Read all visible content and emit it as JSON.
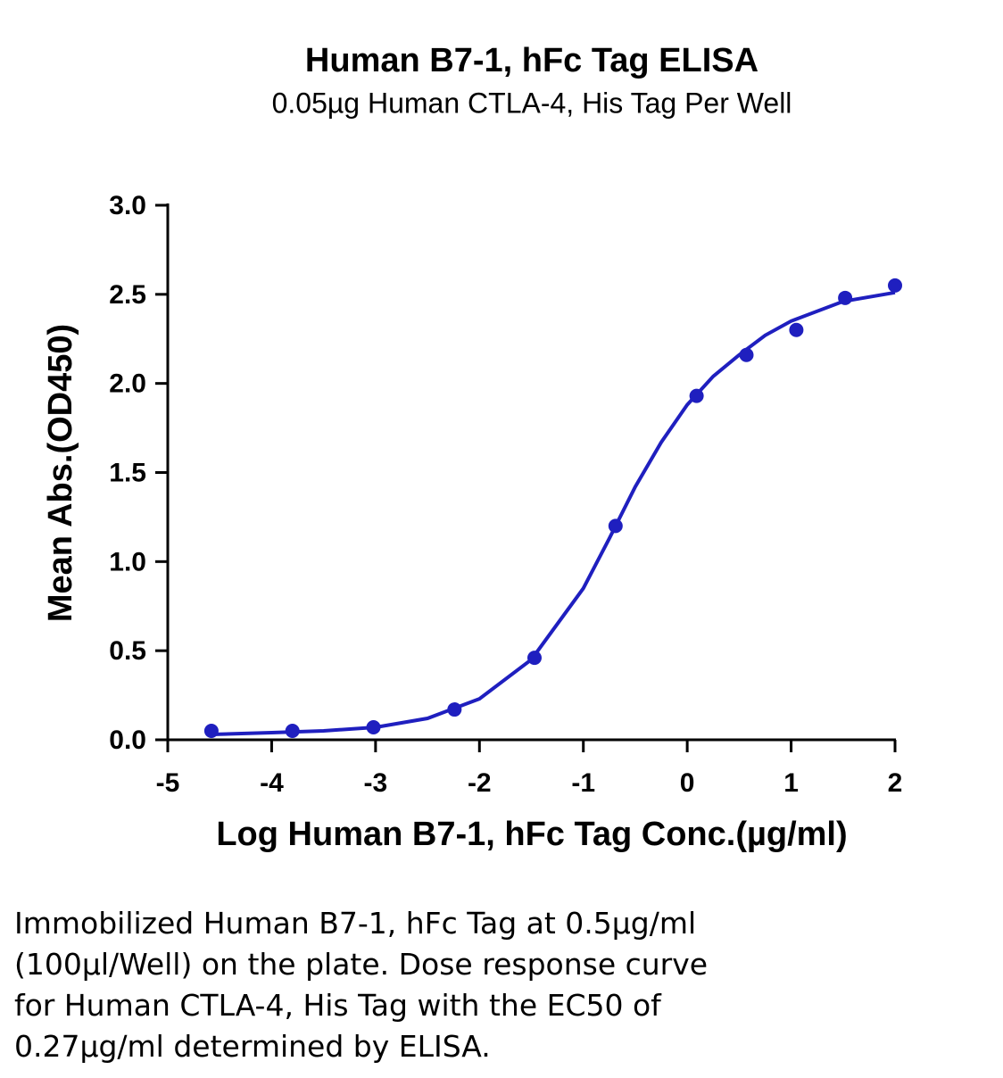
{
  "chart_data": {
    "type": "scatter",
    "title": "Human B7-1, hFc Tag ELISA",
    "subtitle": "0.05µg Human CTLA-4, His Tag Per Well",
    "x_label": "Log Human B7-1, hFc Tag Conc.(µg/ml)",
    "y_label": "Mean Abs.(OD450)",
    "xlim": [
      -5,
      2
    ],
    "xticks": [
      -5,
      -4,
      -3,
      -2,
      -1,
      0,
      1,
      2
    ],
    "ylim": [
      0,
      3
    ],
    "yticks": [
      {
        "value": 0,
        "label": "0.0"
      },
      {
        "value": 0.5,
        "label": "0.5"
      },
      {
        "value": 1,
        "label": "1.0"
      },
      {
        "value": 1.5,
        "label": "1.5"
      },
      {
        "value": 2,
        "label": "2.0"
      },
      {
        "value": 2.5,
        "label": "2.5"
      },
      {
        "value": 3,
        "label": "3.0"
      }
    ],
    "points": {
      "color": "#1f1fbf",
      "x": [
        -4.58,
        -3.8,
        -3.02,
        -2.24,
        -1.47,
        -0.69,
        0.09,
        0.57,
        1.05,
        1.52,
        2.0
      ],
      "values": [
        0.05,
        0.05,
        0.07,
        0.17,
        0.46,
        1.2,
        1.93,
        2.16,
        2.3,
        2.48,
        2.55
      ]
    },
    "fit": {
      "color": "#1f1fbf",
      "x": [
        -4.58,
        -4,
        -3.5,
        -3,
        -2.5,
        -2,
        -1.5,
        -1,
        -0.75,
        -0.5,
        -0.25,
        0,
        0.25,
        0.5,
        0.75,
        1,
        1.5,
        2
      ],
      "values": [
        0.03,
        0.04,
        0.05,
        0.07,
        0.12,
        0.23,
        0.45,
        0.85,
        1.13,
        1.42,
        1.67,
        1.88,
        2.04,
        2.16,
        2.27,
        2.35,
        2.46,
        2.51
      ]
    }
  },
  "caption": [
    "Immobilized Human B7-1, hFc Tag at 0.5µg/ml",
    "(100µl/Well) on the plate. Dose response curve",
    "for Human CTLA-4, His Tag with the EC50 of",
    "0.27µg/ml determined by ELISA."
  ]
}
